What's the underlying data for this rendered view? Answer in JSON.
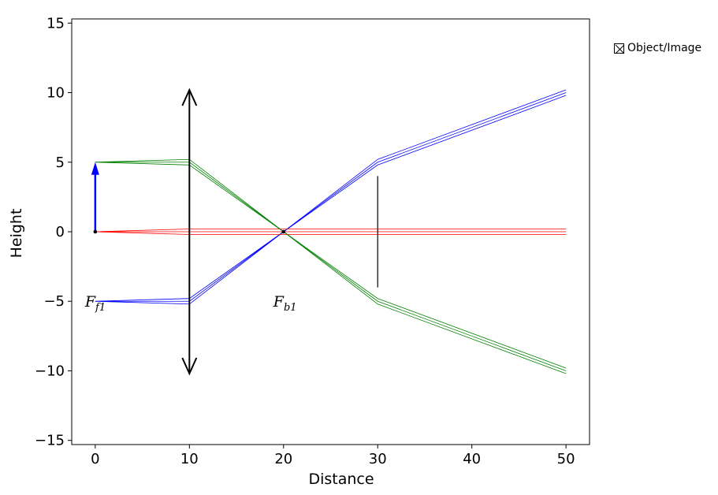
{
  "chart_data": {
    "type": "line",
    "title": "",
    "xlabel": "Distance",
    "ylabel": "Height",
    "xlim": [
      -2.5,
      52.5
    ],
    "ylim": [
      -15.3,
      15.3
    ],
    "xticks": [
      0,
      10,
      20,
      30,
      40,
      50
    ],
    "yticks": [
      -15,
      -10,
      -5,
      0,
      5,
      10,
      15
    ],
    "grid": false,
    "legend": {
      "position": "right",
      "entries": [
        "Object/Image"
      ]
    },
    "lens": {
      "x": 10,
      "y_min": -10.2,
      "y_max": 10.2,
      "color": "#000000"
    },
    "aperture_stop": {
      "x": 30,
      "y_min": -4,
      "y_max": 4,
      "color": "#000000"
    },
    "object_arrow": {
      "x": 0,
      "y_start": 0,
      "y_end": 5,
      "color": "#0000ff"
    },
    "focal_labels": [
      {
        "text": "F",
        "sub": "f1",
        "x": 0,
        "y": -5
      },
      {
        "text": "F",
        "sub": "b1",
        "x": 20,
        "y": -5
      }
    ],
    "points": [
      {
        "x": 0,
        "y": 0
      },
      {
        "x": 20,
        "y": 0
      }
    ],
    "series": [
      {
        "color": "#0000ff",
        "x": [
          0,
          10,
          20,
          30,
          50
        ],
        "y": [
          -5,
          -5.2,
          0,
          5.2,
          10.2
        ]
      },
      {
        "color": "#0000ff",
        "x": [
          0,
          10,
          20,
          30,
          50
        ],
        "y": [
          -5,
          -5.0,
          0,
          5.0,
          10.0
        ]
      },
      {
        "color": "#0000ff",
        "x": [
          0,
          10,
          20,
          30,
          50
        ],
        "y": [
          -5,
          -4.8,
          0,
          4.8,
          9.8
        ]
      },
      {
        "color": "#ff0000",
        "x": [
          0,
          10,
          20,
          30,
          50
        ],
        "y": [
          0,
          0.2,
          0.2,
          0.2,
          0.2
        ]
      },
      {
        "color": "#ff0000",
        "x": [
          0,
          10,
          20,
          30,
          50
        ],
        "y": [
          0,
          0,
          0,
          0,
          0
        ]
      },
      {
        "color": "#ff0000",
        "x": [
          0,
          10,
          20,
          30,
          50
        ],
        "y": [
          0,
          -0.2,
          -0.2,
          -0.2,
          -0.2
        ]
      },
      {
        "color": "#008000",
        "x": [
          0,
          10,
          20,
          30,
          50
        ],
        "y": [
          5,
          5.2,
          0,
          -5.2,
          -10.2
        ]
      },
      {
        "color": "#008000",
        "x": [
          0,
          10,
          20,
          30,
          50
        ],
        "y": [
          5,
          5.0,
          0,
          -5.0,
          -10.0
        ]
      },
      {
        "color": "#008000",
        "x": [
          0,
          10,
          20,
          30,
          50
        ],
        "y": [
          5,
          4.8,
          0,
          -4.8,
          -9.8
        ]
      }
    ]
  }
}
